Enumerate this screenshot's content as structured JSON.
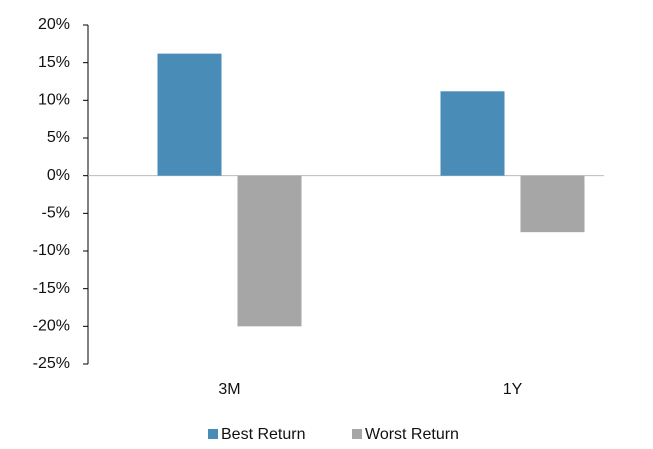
{
  "chart_data": {
    "type": "bar",
    "categories": [
      "3M",
      "1Y"
    ],
    "series": [
      {
        "name": "Best Return",
        "color": "#4a8cb8",
        "values": [
          16.2,
          11.2
        ]
      },
      {
        "name": "Worst Return",
        "color": "#a6a6a6",
        "values": [
          -20,
          -7.5
        ]
      }
    ],
    "ylim": [
      -25,
      20
    ],
    "yticks": [
      {
        "value": -25,
        "label": "-25%"
      },
      {
        "value": -20,
        "label": "-20%"
      },
      {
        "value": -15,
        "label": "-15%"
      },
      {
        "value": -10,
        "label": "-10%"
      },
      {
        "value": -5,
        "label": "-5%"
      },
      {
        "value": 0,
        "label": "0%"
      },
      {
        "value": 5,
        "label": "5%"
      },
      {
        "value": 10,
        "label": "10%"
      },
      {
        "value": 15,
        "label": "15%"
      },
      {
        "value": 20,
        "label": "20%"
      }
    ],
    "grid": false,
    "legend": "bottom"
  }
}
